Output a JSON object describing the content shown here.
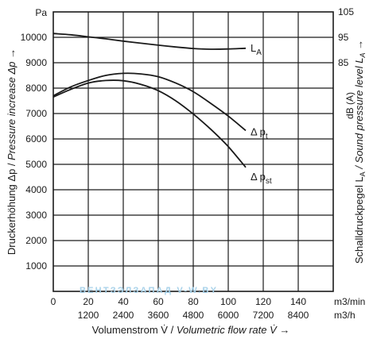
{
  "chart_data": {
    "type": "line",
    "x_unit": "m3/min",
    "x_unit_secondary": "m3/h",
    "x_ticks": [
      0,
      20,
      40,
      60,
      80,
      100,
      120,
      140
    ],
    "x_ticks_secondary": [
      1200,
      2400,
      3600,
      4800,
      6000,
      7200,
      8400
    ],
    "xlim": [
      0,
      160
    ],
    "y_unit": "Pa",
    "y_ticks": [
      1000,
      2000,
      3000,
      4000,
      5000,
      6000,
      7000,
      8000,
      9000,
      10000
    ],
    "ylim": [
      0,
      11000
    ],
    "y2_unit": "dB (A)",
    "y2_ticks": [
      85,
      95,
      105
    ],
    "xlabel_plain": "Volumenstrom V̇ / ",
    "xlabel_italic": "Volumetric flow rate V̇",
    "xlabel_arrow": " →",
    "ylabel_plain": "Druckerhöhung Δp / ",
    "ylabel_italic": "Pressure increase Δp",
    "ylabel_arrow": " →",
    "y2label_plain": "Schalldruckpegel L",
    "y2label_sub": "A",
    "y2label_italic": " / Sound pressure level L",
    "y2label_arrow": " →",
    "grid": true,
    "series": [
      {
        "name": "L",
        "name_sub": "A",
        "x": [
          0,
          10,
          20,
          30,
          40,
          50,
          60,
          70,
          80,
          90,
          100,
          110
        ],
        "y": [
          10150,
          10100,
          10020,
          9940,
          9850,
          9770,
          9690,
          9620,
          9560,
          9530,
          9540,
          9570
        ]
      },
      {
        "name": "Δ p",
        "name_sub": "t",
        "x": [
          0,
          10,
          20,
          30,
          40,
          50,
          60,
          70,
          80,
          90,
          100,
          110
        ],
        "y": [
          7700,
          8050,
          8300,
          8500,
          8580,
          8560,
          8450,
          8200,
          7860,
          7400,
          6900,
          6330
        ]
      },
      {
        "name": "Δ p",
        "name_sub": "st",
        "x": [
          0,
          10,
          20,
          30,
          40,
          50,
          60,
          70,
          80,
          90,
          100,
          110
        ],
        "y": [
          7650,
          7950,
          8200,
          8300,
          8290,
          8150,
          7900,
          7500,
          6980,
          6380,
          5700,
          4880
        ]
      }
    ]
  },
  "watermark": "ВЕНТЗЭЛЗАПАД V-W.BY"
}
